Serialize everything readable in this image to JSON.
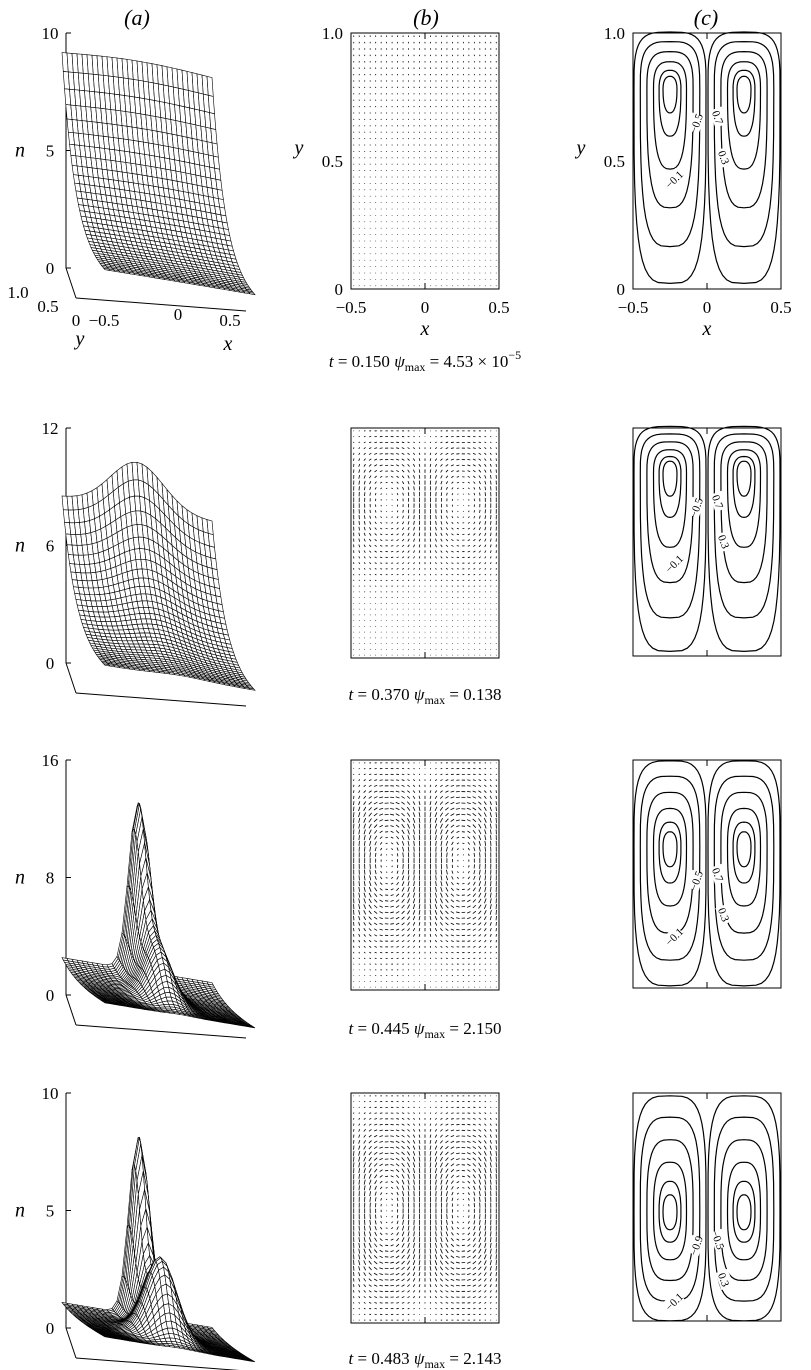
{
  "columns": [
    "(a)",
    "(b)",
    "(c)"
  ],
  "axis_labels": {
    "n": "n",
    "x": "x",
    "y": "y"
  },
  "axis_ticks": {
    "surface_y": [
      "1.0",
      "0.5",
      "0"
    ],
    "surface_x": [
      "−0.5",
      "0",
      "0.5"
    ],
    "quiver_y": [
      "1.0",
      "0.5",
      "0"
    ],
    "quiver_x": [
      "−0.5",
      "0",
      "0.5"
    ],
    "contour_y": [
      "1.0",
      "0.5",
      "0"
    ],
    "contour_x": [
      "−0.5",
      "0",
      "0.5"
    ]
  },
  "rows": [
    {
      "t": "0.150",
      "psi_max": "4.53 × 10",
      "psi_max_exp": "−5",
      "n_ticks": [
        "10",
        "5",
        "0"
      ],
      "n_max": 10,
      "contour_labels": [
        "−0.5",
        "0.7",
        "0.3",
        "−0.1"
      ]
    },
    {
      "t": "0.370",
      "psi_max": "0.138",
      "psi_max_exp": "",
      "n_ticks": [
        "12",
        "6",
        "0"
      ],
      "n_max": 12,
      "contour_labels": [
        "−0.5",
        "0.7",
        "0.3",
        "−0.1"
      ]
    },
    {
      "t": "0.445",
      "psi_max": "2.150",
      "psi_max_exp": "",
      "n_ticks": [
        "16",
        "8",
        "0"
      ],
      "n_max": 16,
      "contour_labels": [
        "−0.5",
        "0.7",
        "0.3",
        "−0.1"
      ]
    },
    {
      "t": "0.483",
      "psi_max": "2.143",
      "psi_max_exp": "",
      "n_ticks": [
        "10",
        "5",
        "0"
      ],
      "n_max": 10,
      "contour_labels": [
        "−0.9",
        "−0.5",
        "0.3",
        "−0.1"
      ]
    }
  ],
  "caption_parts": {
    "t_prefix": "t = ",
    "psi_symbol": "ψ",
    "psi_sub": "max",
    "equals": " = "
  }
}
